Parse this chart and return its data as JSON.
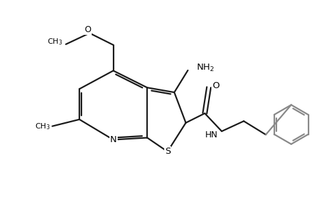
{
  "bg_color": "#ffffff",
  "line_color": "#1a1a1a",
  "line_color_gray": "#888888",
  "line_width": 1.6,
  "figsize": [
    4.6,
    3.0
  ],
  "dpi": 100,
  "xlim": [
    0,
    9.2
  ],
  "ylim": [
    0,
    6.0
  ]
}
